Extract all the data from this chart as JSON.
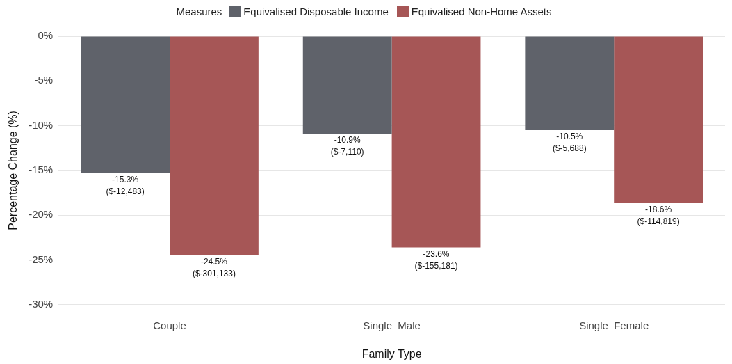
{
  "chart_data": {
    "type": "bar",
    "xlabel": "Family Type",
    "ylabel": "Percentage Change (%)",
    "legend_title": "Measures",
    "legend": "top",
    "categories": [
      "Couple",
      "Single_Male",
      "Single_Female"
    ],
    "series": [
      {
        "name": "Equivalised Disposable Income",
        "color": "#5f626a",
        "values": [
          -15.3,
          -10.9,
          -10.5
        ],
        "value_labels": [
          "-15.3%\n($-12,483)",
          "-10.9%\n($-7,110)",
          "-10.5%\n($-5,688)"
        ]
      },
      {
        "name": "Equivalised Non-Home Assets",
        "color": "#a65656",
        "values": [
          -24.5,
          -23.6,
          -18.6
        ],
        "value_labels": [
          "-24.5%\n($-301,133)",
          "-23.6%\n($-155,181)",
          "-18.6%\n($-114,819)"
        ]
      }
    ],
    "ylim": [
      -30,
      0
    ],
    "yticks": [
      {
        "value": 0,
        "label": "0%"
      },
      {
        "value": -5,
        "label": "-5%"
      },
      {
        "value": -10,
        "label": "-10%"
      },
      {
        "value": -15,
        "label": "-15%"
      },
      {
        "value": -20,
        "label": "-20%"
      },
      {
        "value": -25,
        "label": "-25%"
      },
      {
        "value": -30,
        "label": "-30%"
      }
    ],
    "grid": "y"
  }
}
